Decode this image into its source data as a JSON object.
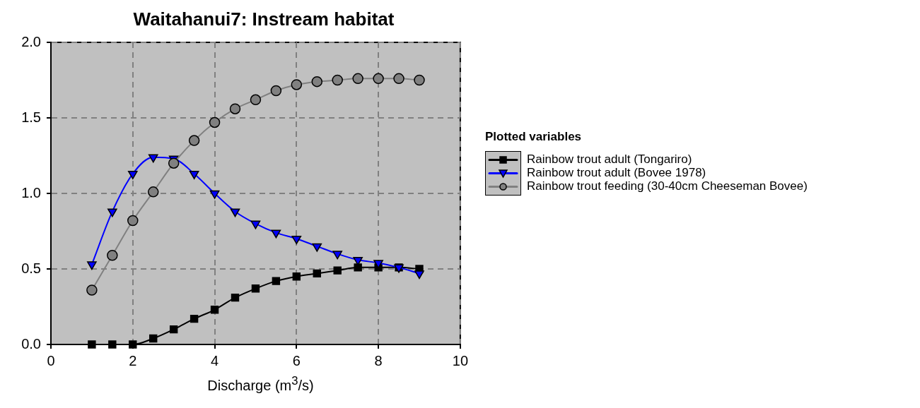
{
  "chart_data": {
    "type": "line",
    "title": "Waitahanui7: Instream habitat",
    "xlabel": "Discharge (m$^{3}$/s)",
    "legend_title": "Plotted variables",
    "x": [
      1.0,
      1.5,
      2.0,
      2.5,
      3.0,
      3.5,
      4.0,
      4.5,
      5.0,
      5.5,
      6.0,
      6.5,
      7.0,
      7.5,
      8.0,
      8.5,
      9.0
    ],
    "series": [
      {
        "name": "Rainbow trout adult (Tongariro)",
        "color": "#000000",
        "marker": "square",
        "values": [
          0.0,
          0.0,
          0.0,
          0.04,
          0.1,
          0.17,
          0.23,
          0.31,
          0.37,
          0.42,
          0.45,
          0.47,
          0.49,
          0.51,
          0.51,
          0.51,
          0.5
        ]
      },
      {
        "name": "Rainbow trout adult (Bovee 1978)",
        "color": "#0000ff",
        "marker": "triangle",
        "values": [
          0.53,
          0.88,
          1.13,
          1.24,
          1.23,
          1.13,
          1.0,
          0.88,
          0.8,
          0.74,
          0.7,
          0.65,
          0.6,
          0.56,
          0.54,
          0.51,
          0.47
        ]
      },
      {
        "name": "Rainbow trout feeding (30-40cm Cheeseman Bovee)",
        "color": "#808080",
        "marker": "circle",
        "values": [
          0.36,
          0.59,
          0.82,
          1.01,
          1.2,
          1.35,
          1.47,
          1.56,
          1.62,
          1.68,
          1.72,
          1.74,
          1.75,
          1.76,
          1.76,
          1.76,
          1.75
        ]
      }
    ],
    "xlim": [
      0,
      10
    ],
    "xticks": [
      0,
      2,
      4,
      6,
      8,
      10
    ],
    "ylim": [
      0,
      2
    ],
    "yticks": [
      {
        "value": 0,
        "label": "0.0"
      },
      {
        "value": 0.5,
        "label": "0.5"
      },
      {
        "value": 1,
        "label": "1.0"
      },
      {
        "value": 1.5,
        "label": "1.5"
      },
      {
        "value": 2,
        "label": "2.0"
      }
    ],
    "grid": true,
    "legend": "right",
    "line_style": "solid"
  }
}
